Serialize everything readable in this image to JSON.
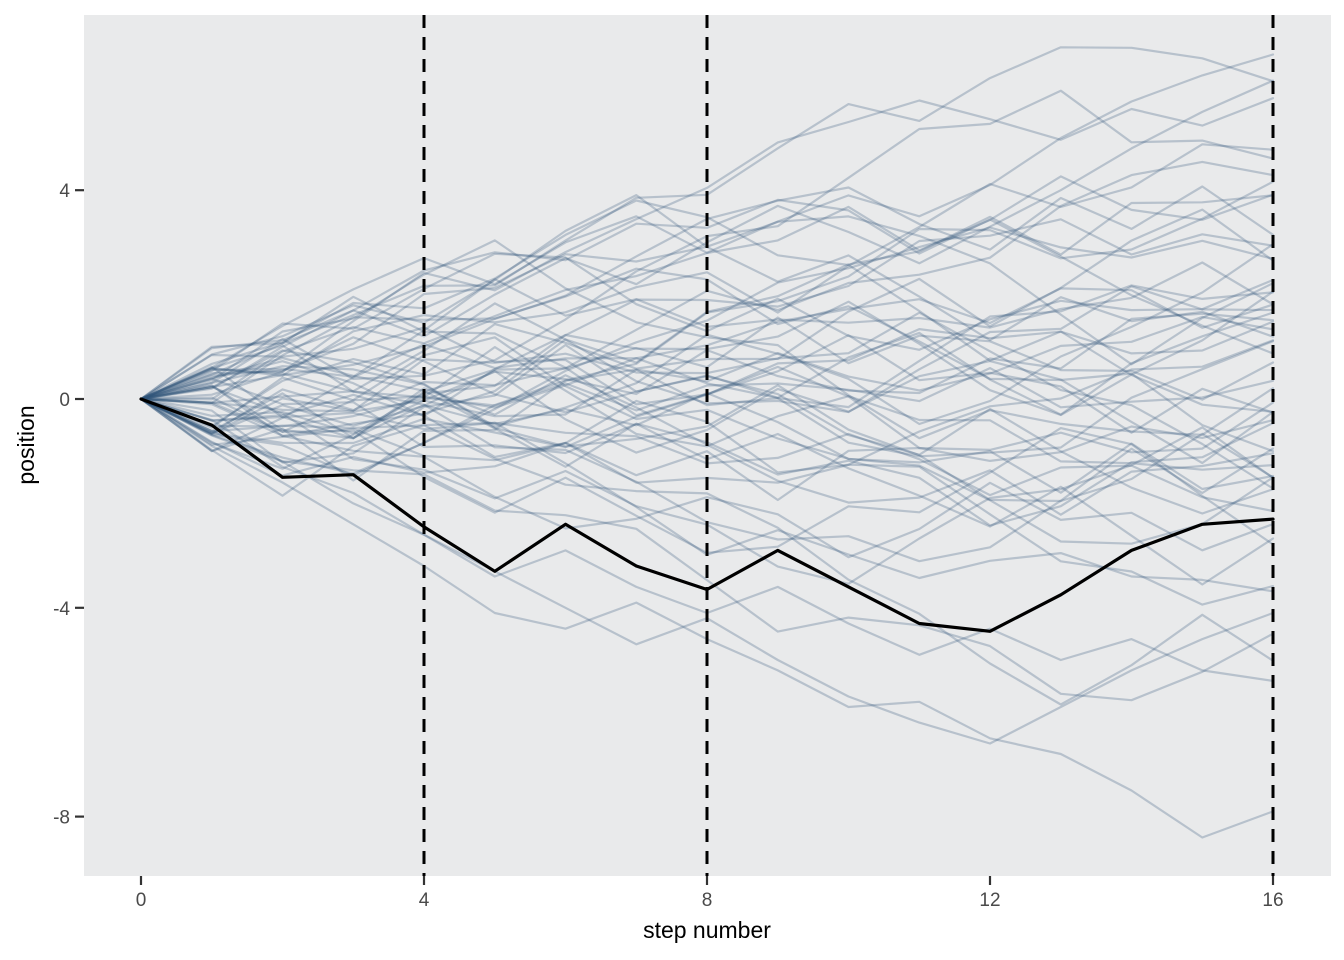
{
  "chart_data": {
    "type": "line",
    "title": "",
    "xlabel": "step number",
    "ylabel": "position",
    "x_ticks": [
      0,
      4,
      8,
      12,
      16
    ],
    "y_ticks": [
      4,
      0,
      -4,
      -8
    ],
    "xlim": [
      -0.8,
      16.8
    ],
    "ylim": [
      -9.2,
      7.4
    ],
    "grid": "off",
    "legend": "none",
    "panel_background": "#E9EAEB",
    "figure_background": "#FFFFFF",
    "tick_color": "#333333",
    "steps": [
      0,
      1,
      2,
      3,
      4,
      5,
      6,
      7,
      8,
      9,
      10,
      11,
      12,
      13,
      14,
      15,
      16
    ],
    "reference_lines": {
      "x_positions": [
        4,
        8,
        16
      ],
      "style": "dashed",
      "color": "#000000",
      "dash": [
        13,
        9
      ],
      "width": 3
    },
    "highlighted_walk": {
      "color": "#000000",
      "width": 3.2,
      "values": [
        0,
        -0.5,
        -1.5,
        -1.45,
        -2.45,
        -3.3,
        -2.4,
        -3.2,
        -3.65,
        -2.9,
        -3.6,
        -4.3,
        -4.45,
        -3.75,
        -2.9,
        -2.4,
        -2.3
      ]
    },
    "walk_style": {
      "color": "#31557A",
      "opacity": 0.27,
      "width": 2.2
    },
    "featured_walks": [
      [
        0,
        0.6,
        1.4,
        2.1,
        2.7,
        2.2,
        3.0,
        3.5,
        2.8,
        3.4,
        3.9,
        3.5,
        4.1,
        5.0,
        5.7,
        6.2,
        6.6
      ],
      [
        0,
        0.2,
        1.0,
        1.7,
        1.2,
        2.0,
        2.7,
        2.2,
        3.0,
        3.7,
        3.2,
        2.6,
        3.3,
        4.0,
        4.8,
        5.5,
        6.1
      ],
      [
        0,
        -0.9,
        -1.6,
        -2.4,
        -3.2,
        -4.1,
        -4.4,
        -3.9,
        -4.6,
        -5.2,
        -5.9,
        -5.8,
        -6.5,
        -6.8,
        -7.5,
        -8.4,
        -7.9
      ],
      [
        0,
        -0.7,
        -1.2,
        -2.0,
        -2.6,
        -3.4,
        -2.9,
        -3.6,
        -4.1,
        -3.6,
        -4.3,
        -4.9,
        -4.4,
        -5.0,
        -4.6,
        -5.2,
        -5.4
      ],
      [
        0,
        -0.4,
        -1.3,
        -1.8,
        -2.6,
        -3.3,
        -4.0,
        -4.7,
        -4.2,
        -5.0,
        -5.7,
        -6.2,
        -6.6,
        -5.9,
        -5.2,
        -4.6,
        -4.1
      ]
    ],
    "background_walks": {
      "count": 55,
      "n_steps": 16,
      "step_distribution": "uniform(-1,1)",
      "seed": 7
    }
  }
}
